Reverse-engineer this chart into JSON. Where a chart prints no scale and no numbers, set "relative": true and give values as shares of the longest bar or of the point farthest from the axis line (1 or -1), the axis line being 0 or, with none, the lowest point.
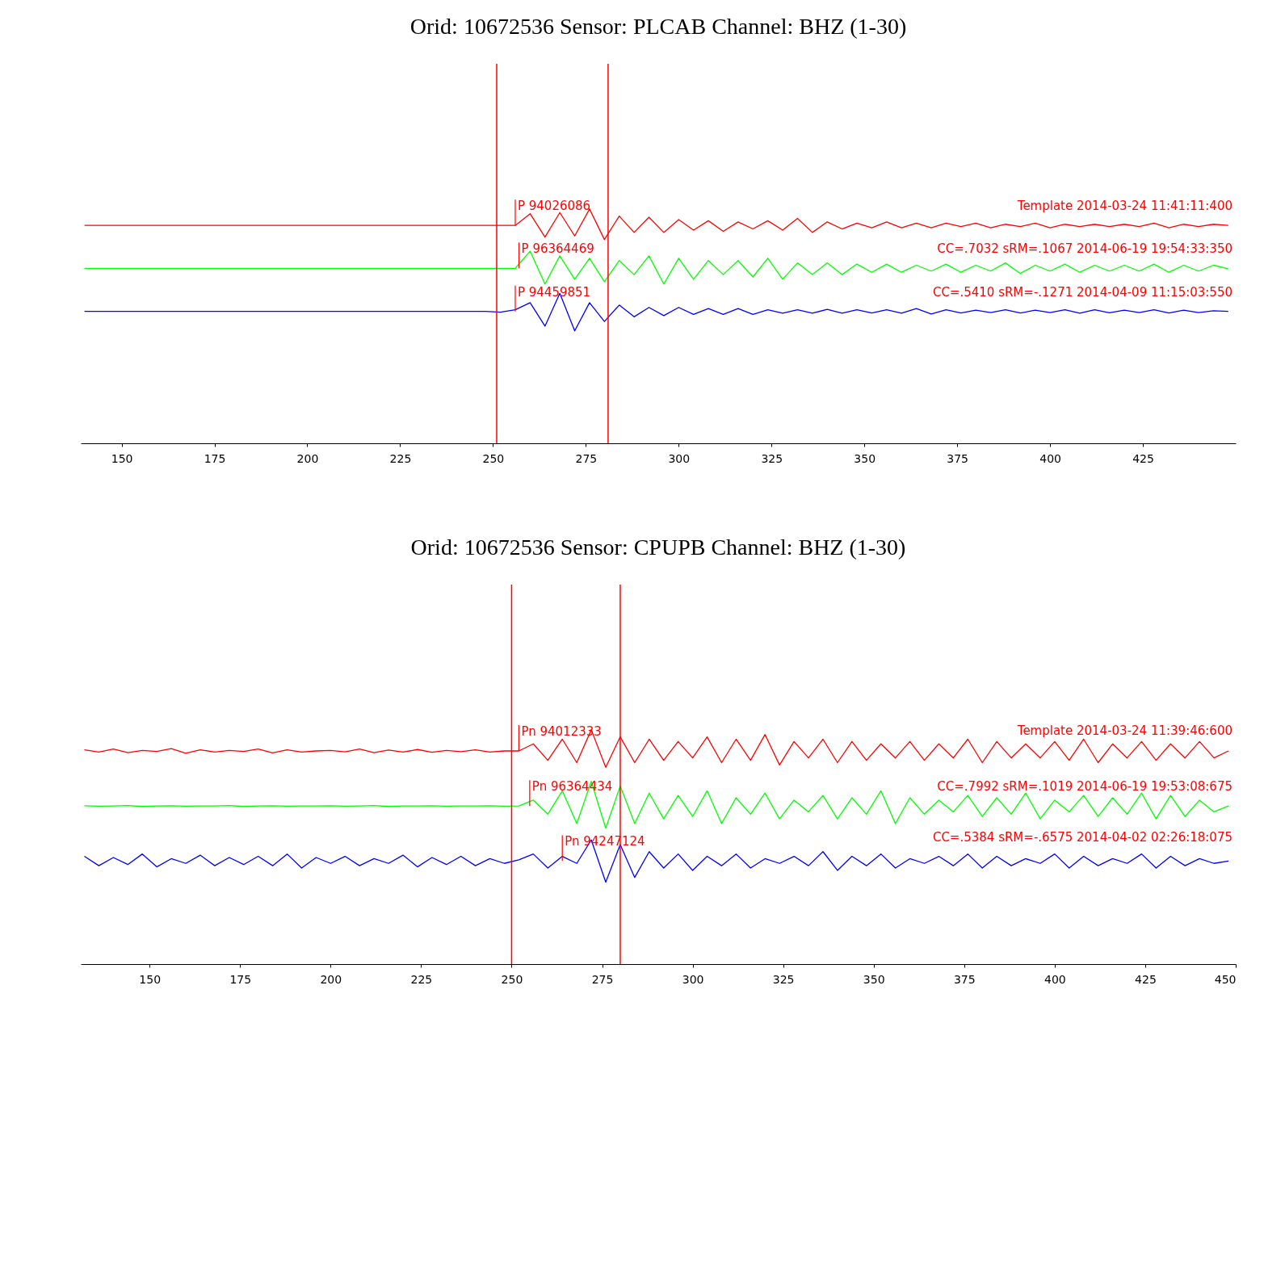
{
  "chart_data": [
    {
      "type": "line",
      "title": "Orid: 10672536 Sensor: PLCAB Channel: BHZ (1-30)",
      "relative": true,
      "xlim": [
        139,
        450
      ],
      "xticks": [
        150,
        175,
        200,
        225,
        250,
        275,
        300,
        325,
        350,
        375,
        400,
        425
      ],
      "grid": false,
      "marker": "none",
      "line_style": "solid",
      "tick_labels": "x",
      "x": [
        140,
        144,
        148,
        152,
        156,
        160,
        164,
        168,
        172,
        176,
        180,
        184,
        188,
        192,
        196,
        200,
        204,
        208,
        212,
        216,
        220,
        224,
        228,
        232,
        236,
        240,
        244,
        248,
        252,
        256,
        260,
        264,
        268,
        272,
        276,
        280,
        284,
        288,
        292,
        296,
        300,
        304,
        308,
        312,
        316,
        320,
        324,
        328,
        332,
        336,
        340,
        344,
        348,
        352,
        356,
        360,
        364,
        368,
        372,
        376,
        380,
        384,
        388,
        392,
        396,
        400,
        404,
        408,
        412,
        416,
        420,
        424,
        428,
        432,
        436,
        440,
        444,
        448
      ],
      "series": [
        {
          "color": "#ff0000",
          "values": [
            0.93,
            0.93,
            0.93,
            0.93,
            0.93,
            0.93,
            0.93,
            0.93,
            0.93,
            0.93,
            0.93,
            0.93,
            0.93,
            0.93,
            0.93,
            0.93,
            0.93,
            0.93,
            0.93,
            0.93,
            0.93,
            0.93,
            0.93,
            0.93,
            0.93,
            0.93,
            0.93,
            0.93,
            0.93,
            0.93,
            0.98,
            0.88,
            0.985,
            0.885,
            1,
            0.87,
            0.97,
            0.9,
            0.965,
            0.9,
            0.955,
            0.91,
            0.95,
            0.905,
            0.945,
            0.915,
            0.95,
            0.91,
            0.96,
            0.9,
            0.945,
            0.915,
            0.94,
            0.92,
            0.945,
            0.92,
            0.94,
            0.92,
            0.94,
            0.925,
            0.94,
            0.92,
            0.935,
            0.925,
            0.94,
            0.92,
            0.935,
            0.925,
            0.935,
            0.925,
            0.935,
            0.925,
            0.94,
            0.92,
            0.935,
            0.925,
            0.935,
            0.93
          ]
        },
        {
          "color": "#00ff00",
          "values": [
            0.747,
            0.747,
            0.747,
            0.747,
            0.747,
            0.747,
            0.747,
            0.747,
            0.747,
            0.747,
            0.747,
            0.747,
            0.747,
            0.747,
            0.747,
            0.747,
            0.747,
            0.747,
            0.747,
            0.747,
            0.747,
            0.747,
            0.747,
            0.747,
            0.747,
            0.747,
            0.747,
            0.747,
            0.747,
            0.747,
            0.82,
            0.68,
            0.8,
            0.7,
            0.79,
            0.69,
            0.78,
            0.72,
            0.8,
            0.68,
            0.79,
            0.7,
            0.78,
            0.72,
            0.78,
            0.71,
            0.79,
            0.7,
            0.77,
            0.72,
            0.77,
            0.72,
            0.765,
            0.73,
            0.765,
            0.73,
            0.76,
            0.735,
            0.765,
            0.73,
            0.76,
            0.735,
            0.77,
            0.725,
            0.76,
            0.735,
            0.765,
            0.73,
            0.76,
            0.735,
            0.76,
            0.735,
            0.765,
            0.73,
            0.76,
            0.735,
            0.76,
            0.745
          ]
        },
        {
          "color": "#0000ff",
          "values": [
            0.563,
            0.563,
            0.563,
            0.563,
            0.563,
            0.563,
            0.563,
            0.563,
            0.563,
            0.563,
            0.563,
            0.563,
            0.563,
            0.563,
            0.563,
            0.563,
            0.563,
            0.563,
            0.563,
            0.563,
            0.563,
            0.563,
            0.563,
            0.563,
            0.563,
            0.563,
            0.563,
            0.563,
            0.56,
            0.57,
            0.6,
            0.5,
            0.64,
            0.48,
            0.6,
            0.52,
            0.59,
            0.54,
            0.58,
            0.545,
            0.58,
            0.55,
            0.575,
            0.55,
            0.575,
            0.55,
            0.57,
            0.555,
            0.57,
            0.555,
            0.572,
            0.555,
            0.57,
            0.556,
            0.57,
            0.555,
            0.575,
            0.552,
            0.57,
            0.556,
            0.568,
            0.558,
            0.57,
            0.556,
            0.568,
            0.558,
            0.57,
            0.555,
            0.57,
            0.557,
            0.568,
            0.558,
            0.57,
            0.556,
            0.568,
            0.558,
            0.566,
            0.563
          ]
        }
      ],
      "ref_lines": [
        {
          "axis": "x",
          "value": 251,
          "color": "#ff0000"
        },
        {
          "axis": "x",
          "value": 281,
          "color": "#ff0000"
        }
      ],
      "annotations": [
        {
          "text": "P 94026086",
          "x": 256,
          "y": 0.93
        },
        {
          "text": "P 96364469",
          "x": 257,
          "y": 0.747
        },
        {
          "text": "P 94459851",
          "x": 256,
          "y": 0.563
        },
        "Template  2014-03-24 11:41:11:400",
        "CC=.7032 sRM=.1067 2014-06-19 19:54:33:350",
        "CC=.5410 sRM=-.1271 2014-04-09 11:15:03:550"
      ]
    },
    {
      "type": "line",
      "title": "Orid: 10672536 Sensor: CPUPB Channel: BHZ (1-30)",
      "relative": true,
      "xlim": [
        131,
        450
      ],
      "xticks": [
        150,
        175,
        200,
        225,
        250,
        275,
        300,
        325,
        350,
        375,
        400,
        425,
        450
      ],
      "grid": false,
      "marker": "none",
      "line_style": "solid",
      "tick_labels": "x",
      "x": [
        132,
        136,
        140,
        144,
        148,
        152,
        156,
        160,
        164,
        168,
        172,
        176,
        180,
        184,
        188,
        192,
        196,
        200,
        204,
        208,
        212,
        216,
        220,
        224,
        228,
        232,
        236,
        240,
        244,
        248,
        252,
        256,
        260,
        264,
        268,
        272,
        276,
        280,
        284,
        288,
        292,
        296,
        300,
        304,
        308,
        312,
        316,
        320,
        324,
        328,
        332,
        336,
        340,
        344,
        348,
        352,
        356,
        360,
        364,
        368,
        372,
        376,
        380,
        384,
        388,
        392,
        396,
        400,
        404,
        408,
        412,
        416,
        420,
        424,
        428,
        432,
        436,
        440,
        444,
        448
      ],
      "series": [
        {
          "color": "#ff0000",
          "values": [
            0.915,
            0.905,
            0.918,
            0.903,
            0.912,
            0.908,
            0.92,
            0.9,
            0.915,
            0.905,
            0.912,
            0.908,
            0.918,
            0.902,
            0.915,
            0.905,
            0.91,
            0.912,
            0.906,
            0.918,
            0.903,
            0.914,
            0.905,
            0.916,
            0.904,
            0.912,
            0.907,
            0.915,
            0.905,
            0.91,
            0.91,
            0.94,
            0.87,
            0.96,
            0.86,
            1,
            0.84,
            0.97,
            0.86,
            0.96,
            0.87,
            0.95,
            0.88,
            0.97,
            0.86,
            0.96,
            0.87,
            0.98,
            0.85,
            0.95,
            0.88,
            0.96,
            0.86,
            0.95,
            0.87,
            0.94,
            0.88,
            0.95,
            0.87,
            0.94,
            0.88,
            0.96,
            0.86,
            0.95,
            0.88,
            0.94,
            0.88,
            0.95,
            0.87,
            0.96,
            0.86,
            0.94,
            0.88,
            0.95,
            0.87,
            0.94,
            0.88,
            0.95,
            0.88,
            0.91
          ]
        },
        {
          "color": "#00ff00",
          "values": [
            0.676,
            0.674,
            0.675,
            0.677,
            0.673,
            0.675,
            0.676,
            0.674,
            0.675,
            0.675,
            0.677,
            0.673,
            0.675,
            0.676,
            0.674,
            0.675,
            0.675,
            0.676,
            0.674,
            0.675,
            0.677,
            0.673,
            0.675,
            0.675,
            0.676,
            0.674,
            0.675,
            0.675,
            0.676,
            0.674,
            0.675,
            0.7,
            0.64,
            0.74,
            0.6,
            0.78,
            0.58,
            0.76,
            0.6,
            0.73,
            0.62,
            0.72,
            0.63,
            0.74,
            0.6,
            0.71,
            0.64,
            0.73,
            0.62,
            0.7,
            0.65,
            0.72,
            0.62,
            0.71,
            0.64,
            0.74,
            0.6,
            0.71,
            0.64,
            0.7,
            0.65,
            0.72,
            0.63,
            0.71,
            0.64,
            0.73,
            0.62,
            0.7,
            0.65,
            0.72,
            0.63,
            0.71,
            0.64,
            0.73,
            0.62,
            0.72,
            0.63,
            0.7,
            0.65,
            0.675
          ]
        },
        {
          "color": "#0000ff",
          "values": [
            0.46,
            0.42,
            0.455,
            0.425,
            0.47,
            0.415,
            0.45,
            0.43,
            0.465,
            0.42,
            0.455,
            0.425,
            0.46,
            0.42,
            0.47,
            0.41,
            0.455,
            0.43,
            0.46,
            0.42,
            0.45,
            0.43,
            0.465,
            0.415,
            0.455,
            0.425,
            0.46,
            0.42,
            0.45,
            0.43,
            0.445,
            0.47,
            0.41,
            0.46,
            0.43,
            0.53,
            0.35,
            0.51,
            0.37,
            0.48,
            0.41,
            0.47,
            0.4,
            0.46,
            0.42,
            0.47,
            0.41,
            0.45,
            0.43,
            0.46,
            0.42,
            0.48,
            0.4,
            0.46,
            0.42,
            0.47,
            0.41,
            0.45,
            0.43,
            0.46,
            0.42,
            0.47,
            0.41,
            0.46,
            0.42,
            0.45,
            0.43,
            0.47,
            0.41,
            0.46,
            0.42,
            0.45,
            0.43,
            0.47,
            0.41,
            0.46,
            0.42,
            0.45,
            0.43,
            0.44
          ]
        }
      ],
      "ref_lines": [
        {
          "axis": "x",
          "value": 250,
          "color": "#ff0000"
        },
        {
          "axis": "x",
          "value": 280,
          "color": "#ff0000"
        }
      ],
      "annotations": [
        {
          "text": "Pn 94012333",
          "x": 252,
          "y": 0.91
        },
        {
          "text": "Pn 96364434",
          "x": 255,
          "y": 0.675
        },
        {
          "text": "Pn 94247124",
          "x": 264,
          "y": 0.44
        },
        "Template  2014-03-24 11:39:46:600",
        "CC=.7992 sRM=.1019 2014-06-19 19:53:08:675",
        "CC=.5384 sRM=-.6575 2014-04-02 02:26:18:075"
      ]
    }
  ]
}
